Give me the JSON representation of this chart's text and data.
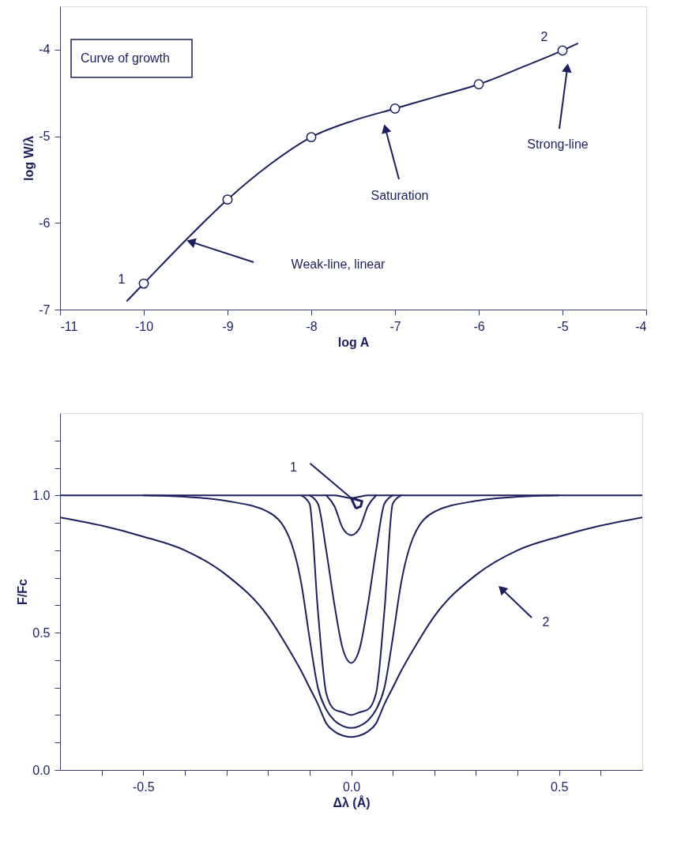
{
  "chart_data": [
    {
      "type": "line",
      "xlabel": "log A",
      "ylabel": "log W/λ",
      "xlim": [
        -11,
        -4
      ],
      "ylim": [
        -7,
        -3.5
      ],
      "xticks": [
        -11,
        -10,
        -9,
        -8,
        -7,
        -6,
        -5,
        -4
      ],
      "yticks": [
        -7,
        -6,
        -5,
        -4
      ],
      "grid": false,
      "line_style": "solid",
      "series": [
        {
          "type": "line",
          "color": "#1c1f5e",
          "x": [
            -10.2,
            -10,
            -9.5,
            -9,
            -8.5,
            -8,
            -7.5,
            -7,
            -6.5,
            -6,
            -5.5,
            -5,
            -4.82
          ],
          "values": [
            -6.9,
            -6.7,
            -6.2,
            -5.73,
            -5.33,
            -5.01,
            -4.82,
            -4.68,
            -4.54,
            -4.4,
            -4.21,
            -4.01,
            -3.93
          ]
        },
        {
          "type": "scatter",
          "marker": "circle",
          "color": "#1c1f5e",
          "x": [
            -10,
            -9,
            -8,
            -7,
            -6,
            -5
          ],
          "values": [
            -6.7,
            -5.73,
            -5.01,
            -4.68,
            -4.4,
            -4.01
          ]
        }
      ],
      "annotations": [
        "Curve of growth",
        {
          "text": "1",
          "x": -10,
          "y": -6.7
        },
        {
          "text": "2",
          "x": -5,
          "y": -4.01
        },
        "Weak-line, linear",
        "Saturation",
        "Strong-line"
      ]
    },
    {
      "type": "line",
      "xlabel": "Δλ (Å)",
      "ylabel": "F/Fc",
      "xlim": [
        -0.7,
        0.7
      ],
      "ylim": [
        0,
        1.3
      ],
      "grid": false,
      "line_style": "solid",
      "xticks": [
        {
          "value": -0.6,
          "label": null
        },
        {
          "value": -0.5,
          "label": "-0.5"
        },
        {
          "value": -0.4,
          "label": null
        },
        {
          "value": -0.3,
          "label": null
        },
        {
          "value": -0.2,
          "label": null
        },
        {
          "value": -0.1,
          "label": null
        },
        {
          "value": 0,
          "label": "0.0"
        },
        {
          "value": 0.1,
          "label": null
        },
        {
          "value": 0.2,
          "label": null
        },
        {
          "value": 0.3,
          "label": null
        },
        {
          "value": 0.4,
          "label": null
        },
        {
          "value": 0.5,
          "label": "0.5"
        },
        {
          "value": 0.6,
          "label": null
        }
      ],
      "yticks": [
        {
          "value": 0,
          "label": "0.0"
        },
        {
          "value": 0.1,
          "label": null
        },
        {
          "value": 0.2,
          "label": null
        },
        {
          "value": 0.3,
          "label": null
        },
        {
          "value": 0.4,
          "label": null
        },
        {
          "value": 0.5,
          "label": "0.5"
        },
        {
          "value": 0.6,
          "label": null
        },
        {
          "value": 0.7,
          "label": null
        },
        {
          "value": 0.8,
          "label": null
        },
        {
          "value": 0.9,
          "label": null
        },
        {
          "value": 1.0,
          "label": "1.0"
        },
        {
          "value": 1.1,
          "label": null
        },
        {
          "value": 1.2,
          "label": null
        }
      ],
      "x": [
        -0.7,
        -0.6,
        -0.5,
        -0.4,
        -0.3,
        -0.2,
        -0.15,
        -0.12,
        -0.1,
        -0.08,
        -0.06,
        -0.04,
        -0.02,
        0,
        0.02,
        0.04,
        0.06,
        0.08,
        0.1,
        0.12,
        0.15,
        0.2,
        0.3,
        0.4,
        0.5,
        0.6,
        0.7
      ],
      "series": [
        {
          "color": "#1c1f5e",
          "values": [
            1,
            1,
            1,
            1,
            1,
            1,
            1,
            1,
            1,
            1,
            1,
            1,
            0.995,
            0.99,
            0.995,
            1,
            1,
            1,
            1,
            1,
            1,
            1,
            1,
            1,
            1,
            1,
            1
          ]
        },
        {
          "color": "#1c1f5e",
          "values": [
            null,
            null,
            null,
            null,
            null,
            null,
            null,
            null,
            null,
            null,
            1,
            0.96,
            0.88,
            0.855,
            0.88,
            0.96,
            1,
            null,
            null,
            null,
            null,
            null,
            null,
            null,
            null,
            null,
            null
          ]
        },
        {
          "color": "#1c1f5e",
          "values": [
            null,
            null,
            null,
            null,
            null,
            null,
            null,
            null,
            1,
            0.97,
            0.8,
            0.6,
            0.44,
            0.39,
            0.44,
            0.6,
            0.8,
            0.97,
            1,
            null,
            null,
            null,
            null,
            null,
            null,
            null,
            null
          ]
        },
        {
          "color": "#1c1f5e",
          "values": [
            null,
            null,
            null,
            null,
            null,
            null,
            null,
            1,
            0.97,
            0.58,
            0.28,
            0.22,
            0.21,
            0.2,
            0.21,
            0.22,
            0.28,
            0.58,
            0.97,
            1,
            null,
            null,
            null,
            null,
            null,
            null,
            null
          ]
        },
        {
          "color": "#1c1f5e",
          "values": [
            null,
            null,
            1,
            0.995,
            0.98,
            0.94,
            0.85,
            0.68,
            0.48,
            0.3,
            0.22,
            0.18,
            0.16,
            0.153,
            0.16,
            0.18,
            0.22,
            0.3,
            0.48,
            0.68,
            0.85,
            0.94,
            0.98,
            0.995,
            1,
            null,
            null
          ]
        },
        {
          "color": "#1c1f5e",
          "values": [
            0.92,
            0.89,
            0.85,
            0.8,
            0.71,
            0.56,
            0.44,
            0.36,
            0.3,
            0.24,
            0.17,
            0.14,
            0.125,
            0.12,
            0.125,
            0.14,
            0.17,
            0.24,
            0.3,
            0.36,
            0.44,
            0.56,
            0.71,
            0.8,
            0.85,
            0.89,
            0.92
          ]
        }
      ],
      "annotations": [
        {
          "text": "1",
          "x": 0,
          "y": 0.99
        },
        "2"
      ]
    }
  ]
}
